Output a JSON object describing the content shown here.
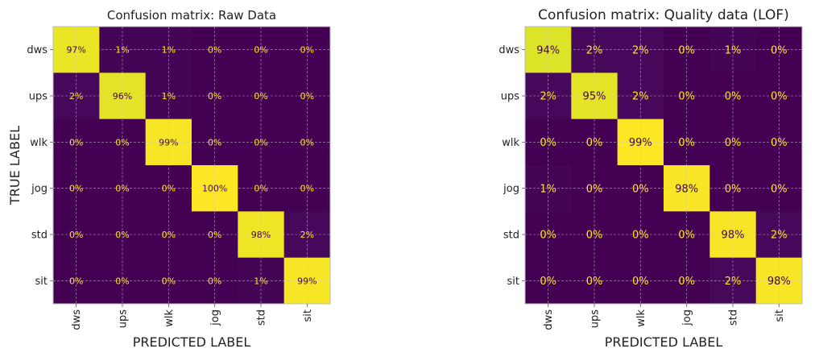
{
  "chart_data": [
    {
      "type": "heatmap",
      "title": "Confusion matrix: Raw Data",
      "xlabel": "PREDICTED LABEL",
      "ylabel": "TRUE LABEL",
      "x_categories": [
        "dws",
        "ups",
        "wlk",
        "jog",
        "std",
        "sit"
      ],
      "y_categories": [
        "dws",
        "ups",
        "wlk",
        "jog",
        "std",
        "sit"
      ],
      "values": [
        [
          97,
          1,
          1,
          0,
          0,
          0
        ],
        [
          2,
          96,
          1,
          0,
          0,
          0
        ],
        [
          0,
          0,
          99,
          0,
          0,
          0
        ],
        [
          0,
          0,
          0,
          100,
          0,
          0
        ],
        [
          0,
          0,
          0,
          0,
          98,
          2
        ],
        [
          0,
          0,
          0,
          0,
          1,
          99
        ]
      ],
      "value_suffix": "%",
      "colormap": "viridis",
      "grid": true
    },
    {
      "type": "heatmap",
      "title": "Confusion matrix: Quality data (LOF)",
      "xlabel": "PREDICTED LABEL",
      "ylabel": "",
      "x_categories": [
        "dws",
        "ups",
        "wlk",
        "jog",
        "std",
        "sit"
      ],
      "y_categories": [
        "dws",
        "ups",
        "wlk",
        "jog",
        "std",
        "sit"
      ],
      "values": [
        [
          94,
          2,
          2,
          0,
          1,
          0
        ],
        [
          2,
          95,
          2,
          0,
          0,
          0
        ],
        [
          0,
          0,
          99,
          0,
          0,
          0
        ],
        [
          1,
          0,
          0,
          98,
          0,
          0
        ],
        [
          0,
          0,
          0,
          0,
          98,
          2
        ],
        [
          0,
          0,
          0,
          0,
          2,
          98
        ]
      ],
      "value_suffix": "%",
      "colormap": "viridis",
      "grid": true
    }
  ],
  "colors": {
    "low": "#440154",
    "high": "#fde725",
    "annotation_on_dark": "#fde725",
    "annotation_on_light": "#440154",
    "frame": "#bbbbbb",
    "grid": "#cccccc"
  }
}
